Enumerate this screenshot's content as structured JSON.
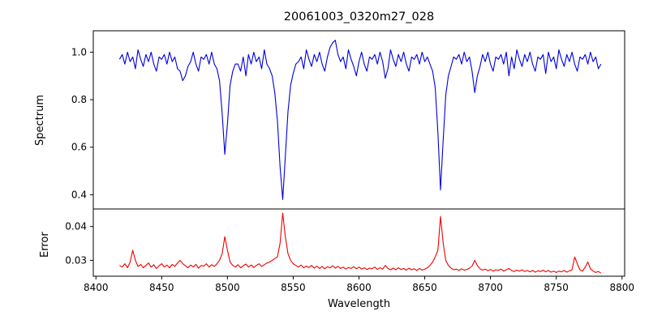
{
  "chart_data": {
    "type": "line",
    "title": "20061003_0320m27_028",
    "xlabel": "Wavelength",
    "grid": false,
    "legend": "none",
    "background": "#ffffff",
    "x_start": 8418,
    "x_step": 2,
    "xlim": [
      8398,
      8802
    ],
    "x_ticks": [
      8400,
      8450,
      8500,
      8550,
      8600,
      8650,
      8700,
      8750,
      8800
    ],
    "features": {
      "absorption_lines": [
        {
          "center": 8498,
          "min_flux": 0.57
        },
        {
          "center": 8542,
          "min_flux": 0.38
        },
        {
          "center": 8662,
          "min_flux": 0.42
        },
        {
          "center": 8688,
          "min_flux": 0.83
        }
      ],
      "error_peaks": [
        {
          "center": 8428,
          "peak": 0.033
        },
        {
          "center": 8498,
          "peak": 0.037
        },
        {
          "center": 8542,
          "peak": 0.044
        },
        {
          "center": 8662,
          "peak": 0.043
        }
      ]
    },
    "panels": [
      {
        "name": "spectrum",
        "ylabel": "Spectrum",
        "color": "#0000dd",
        "ylim": [
          0.34,
          1.09
        ],
        "y_ticks": [
          0.4,
          0.6,
          0.8,
          1.0
        ],
        "y_tick_labels": [
          "0.4",
          "0.6",
          "0.8",
          "1.0"
        ],
        "values": [
          0.97,
          0.99,
          0.95,
          1.0,
          0.96,
          0.98,
          0.93,
          1.01,
          0.97,
          0.94,
          0.99,
          0.96,
          1.0,
          0.95,
          0.92,
          0.98,
          0.97,
          0.99,
          0.95,
          1.0,
          0.96,
          0.98,
          0.93,
          0.92,
          0.88,
          0.9,
          0.94,
          0.96,
          1.0,
          0.95,
          0.92,
          0.98,
          0.97,
          0.99,
          0.95,
          1.0,
          0.95,
          0.93,
          0.88,
          0.74,
          0.57,
          0.7,
          0.86,
          0.92,
          0.95,
          0.95,
          0.92,
          0.98,
          0.9,
          0.99,
          0.95,
          1.0,
          0.96,
          0.98,
          0.93,
          1.01,
          0.95,
          0.93,
          0.9,
          0.83,
          0.71,
          0.52,
          0.38,
          0.56,
          0.75,
          0.86,
          0.91,
          0.95,
          0.96,
          0.98,
          0.93,
          1.01,
          0.97,
          0.94,
          0.99,
          0.96,
          1.0,
          0.95,
          0.92,
          0.98,
          1.02,
          1.04,
          1.05,
          0.99,
          0.96,
          0.98,
          0.93,
          1.01,
          0.97,
          0.94,
          0.9,
          0.96,
          1.0,
          0.95,
          0.92,
          0.98,
          0.97,
          0.99,
          0.95,
          1.0,
          0.96,
          0.89,
          0.93,
          1.01,
          0.97,
          0.94,
          0.99,
          0.96,
          1.0,
          0.95,
          0.92,
          0.98,
          0.97,
          0.99,
          0.95,
          1.0,
          0.96,
          0.98,
          0.95,
          0.92,
          0.85,
          0.66,
          0.42,
          0.63,
          0.82,
          0.9,
          0.94,
          0.98,
          0.97,
          0.99,
          0.95,
          1.0,
          0.96,
          0.98,
          0.92,
          0.83,
          0.9,
          0.94,
          0.99,
          0.96,
          1.0,
          0.95,
          0.92,
          0.98,
          0.97,
          0.99,
          0.95,
          1.0,
          0.9,
          0.98,
          0.93,
          1.01,
          0.97,
          0.94,
          0.99,
          0.96,
          1.0,
          0.95,
          0.92,
          0.98,
          0.97,
          0.99,
          0.91,
          1.0,
          0.96,
          0.98,
          0.93,
          1.01,
          0.97,
          0.94,
          0.99,
          0.96,
          1.0,
          0.95,
          0.92,
          0.98,
          0.97,
          0.99,
          0.95,
          1.0,
          0.96,
          0.98,
          0.93,
          0.95
        ]
      },
      {
        "name": "error",
        "ylabel": "Error",
        "color": "#ee0000",
        "ylim": [
          0.0253,
          0.0452
        ],
        "y_ticks": [
          0.03,
          0.04
        ],
        "y_tick_labels": [
          "0.03",
          "0.04"
        ],
        "values": [
          0.0285,
          0.028,
          0.029,
          0.0278,
          0.0295,
          0.033,
          0.03,
          0.0282,
          0.0288,
          0.0278,
          0.0285,
          0.0292,
          0.028,
          0.0287,
          0.0276,
          0.0284,
          0.029,
          0.028,
          0.0286,
          0.0278,
          0.0288,
          0.0282,
          0.0292,
          0.03,
          0.029,
          0.0284,
          0.0278,
          0.0286,
          0.028,
          0.0288,
          0.0277,
          0.0285,
          0.0283,
          0.029,
          0.028,
          0.0287,
          0.0282,
          0.029,
          0.03,
          0.032,
          0.037,
          0.033,
          0.0295,
          0.0285,
          0.028,
          0.0287,
          0.0278,
          0.0284,
          0.0289,
          0.028,
          0.0286,
          0.0279,
          0.0285,
          0.029,
          0.0282,
          0.0287,
          0.0292,
          0.0295,
          0.03,
          0.0305,
          0.031,
          0.035,
          0.044,
          0.037,
          0.032,
          0.03,
          0.029,
          0.0285,
          0.028,
          0.0286,
          0.0278,
          0.0283,
          0.0279,
          0.0285,
          0.0277,
          0.0283,
          0.0276,
          0.0282,
          0.0275,
          0.0281,
          0.0278,
          0.0284,
          0.0277,
          0.0282,
          0.0276,
          0.028,
          0.0274,
          0.0279,
          0.0276,
          0.0281,
          0.0275,
          0.028,
          0.0274,
          0.0278,
          0.0273,
          0.0277,
          0.0275,
          0.028,
          0.0273,
          0.0278,
          0.0274,
          0.0285,
          0.0276,
          0.0272,
          0.0277,
          0.0272,
          0.0278,
          0.0273,
          0.0276,
          0.0271,
          0.0277,
          0.0272,
          0.0275,
          0.027,
          0.0276,
          0.0271,
          0.0274,
          0.0278,
          0.0285,
          0.0295,
          0.031,
          0.033,
          0.043,
          0.035,
          0.03,
          0.0285,
          0.0277,
          0.0272,
          0.0274,
          0.027,
          0.0275,
          0.0271,
          0.0273,
          0.0277,
          0.0283,
          0.03,
          0.0285,
          0.0275,
          0.0271,
          0.0274,
          0.0269,
          0.0273,
          0.0268,
          0.0272,
          0.027,
          0.0274,
          0.0268,
          0.0272,
          0.0276,
          0.027,
          0.0267,
          0.0271,
          0.0268,
          0.0272,
          0.0267,
          0.027,
          0.0266,
          0.027,
          0.0265,
          0.0269,
          0.0267,
          0.0271,
          0.0266,
          0.027,
          0.0265,
          0.0268,
          0.0264,
          0.0268,
          0.0266,
          0.027,
          0.0265,
          0.0269,
          0.0272,
          0.031,
          0.029,
          0.0272,
          0.0268,
          0.028,
          0.0295,
          0.0275,
          0.0268,
          0.0264,
          0.0267,
          0.0262
        ]
      }
    ]
  }
}
